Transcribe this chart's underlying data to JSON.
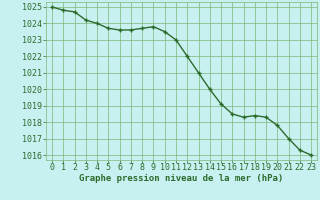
{
  "x": [
    0,
    1,
    2,
    3,
    4,
    5,
    6,
    7,
    8,
    9,
    10,
    11,
    12,
    13,
    14,
    15,
    16,
    17,
    18,
    19,
    20,
    21,
    22,
    23
  ],
  "y": [
    1025.0,
    1024.8,
    1024.7,
    1024.2,
    1024.0,
    1023.7,
    1023.6,
    1023.6,
    1023.7,
    1023.8,
    1023.5,
    1023.0,
    1022.0,
    1021.0,
    1020.0,
    1019.1,
    1018.5,
    1018.3,
    1018.4,
    1018.3,
    1017.8,
    1017.0,
    1016.3,
    1016.0
  ],
  "line_color": "#2d6b2d",
  "marker": "+",
  "marker_color": "#2d6b2d",
  "bg_color": "#c8f0f0",
  "grid_color": "#7ab87a",
  "xlabel": "Graphe pression niveau de la mer (hPa)",
  "xlabel_color": "#2d6b2d",
  "tick_color": "#2d6b2d",
  "ylim": [
    1015.7,
    1025.3
  ],
  "xlim": [
    -0.5,
    23.5
  ],
  "yticks": [
    1016,
    1017,
    1018,
    1019,
    1020,
    1021,
    1022,
    1023,
    1024,
    1025
  ],
  "xticks": [
    0,
    1,
    2,
    3,
    4,
    5,
    6,
    7,
    8,
    9,
    10,
    11,
    12,
    13,
    14,
    15,
    16,
    17,
    18,
    19,
    20,
    21,
    22,
    23
  ],
  "figsize": [
    3.2,
    2.0
  ],
  "dpi": 100,
  "linewidth": 1.0,
  "markersize": 3.5,
  "tick_fontsize": 6.0,
  "xlabel_fontsize": 6.5
}
